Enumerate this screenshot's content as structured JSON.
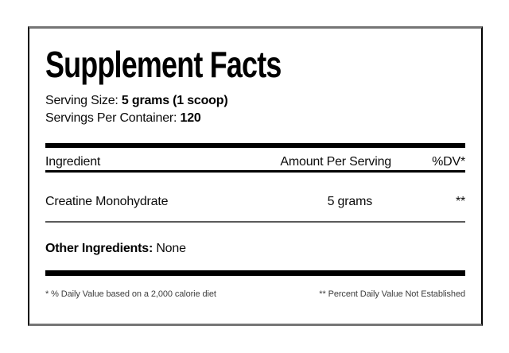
{
  "label": {
    "title": "Supplement Facts",
    "serving_size_label": "Serving Size: ",
    "serving_size_value": "5 grams (1 scoop)",
    "servings_per_container_label": "Servings Per Container: ",
    "servings_per_container_value": "120",
    "table": {
      "headers": [
        "Ingredient",
        "Amount Per Serving",
        "%DV*"
      ],
      "rows": [
        {
          "ingredient": "Creatine Monohydrate",
          "amount": "5 grams",
          "dv": "**"
        }
      ]
    },
    "other_ingredients_label": "Other Ingredients: ",
    "other_ingredients_value": "None",
    "footnote_left": "* % Daily Value based on a 2,000 calorie diet",
    "footnote_right": "** Percent Daily Value Not Established",
    "colors": {
      "text": "#000000",
      "thick_bar": "#000000",
      "header_underline": "#000000",
      "row_divider": "#5a5a5a",
      "border_sides": "#000000",
      "border_top_bottom": "#757575",
      "background": "#ffffff"
    }
  }
}
